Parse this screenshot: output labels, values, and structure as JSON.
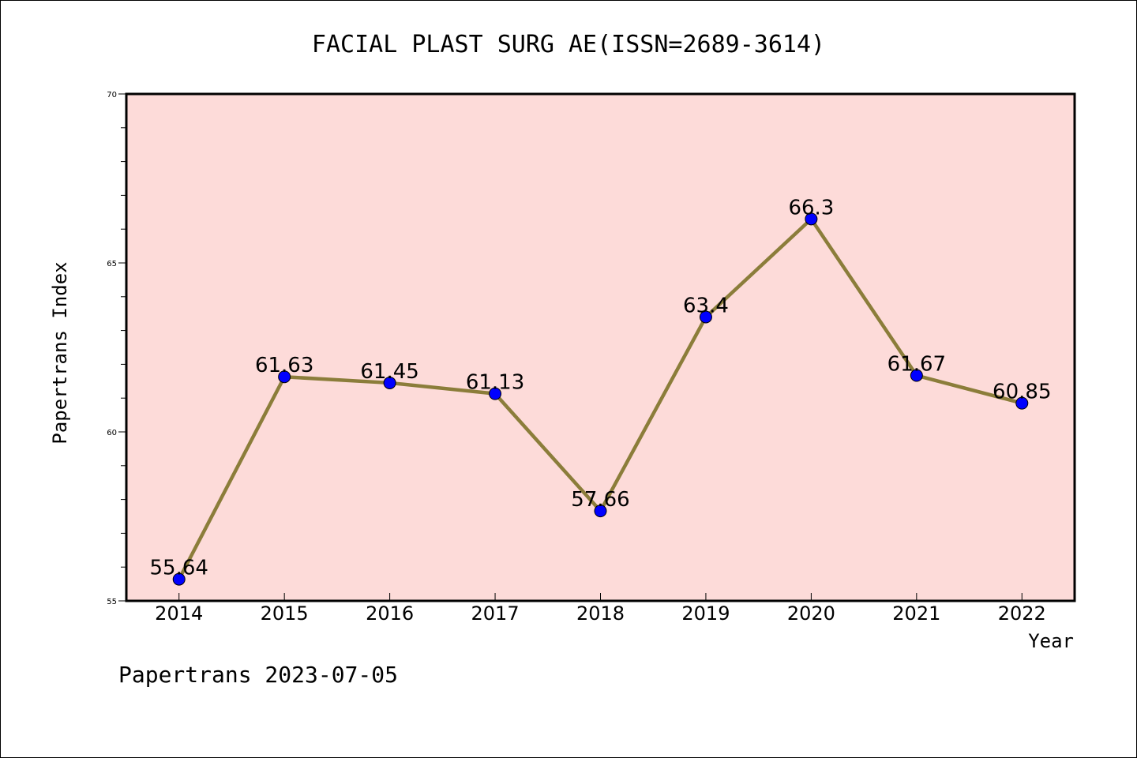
{
  "chart_data": {
    "type": "line",
    "title": "FACIAL PLAST SURG AE(ISSN=2689-3614)",
    "xlabel": "Year",
    "ylabel": "Papertrans Index",
    "categories": [
      "2014",
      "2015",
      "2016",
      "2017",
      "2018",
      "2019",
      "2020",
      "2021",
      "2022"
    ],
    "values": [
      55.64,
      61.63,
      61.45,
      61.13,
      57.66,
      63.4,
      66.3,
      61.67,
      60.85
    ],
    "data_labels": [
      "55.64",
      "61.63",
      "61.45",
      "61.13",
      "57.66",
      "63.4",
      "66.3",
      "61.67",
      "60.85"
    ],
    "ylim": [
      55,
      70
    ],
    "yticks": [
      "55",
      "60",
      "65",
      "70"
    ],
    "grid": false,
    "colors": {
      "plot_background": "#fddbd9",
      "line": "#8b7d3a",
      "marker": "#0000ff"
    }
  },
  "footer": "Papertrans 2023-07-05"
}
